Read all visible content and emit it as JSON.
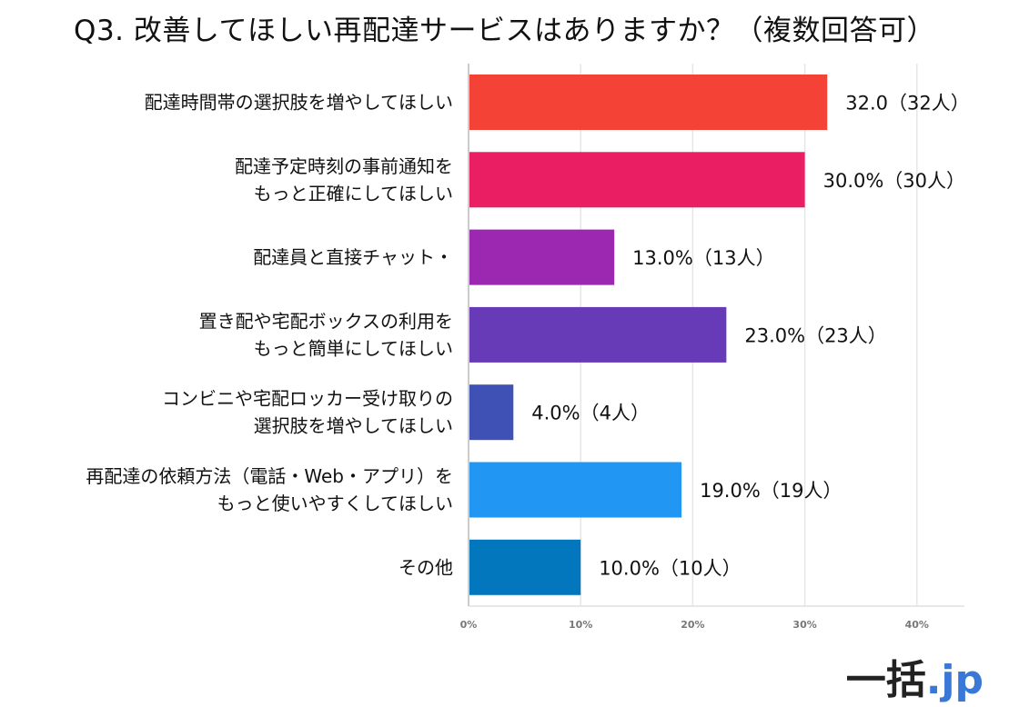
{
  "chart_data": {
    "type": "bar",
    "orientation": "horizontal",
    "title": "Q3. 改善してほしい再配達サービスはありますか？（複数回答可）",
    "xlabel": "",
    "ylabel": "",
    "xlim": [
      0,
      44
    ],
    "grid": true,
    "legend": "none",
    "categories": [
      [
        "配達時間帯の選択肢を増やしてほしい"
      ],
      [
        "配達予定時刻の事前通知を",
        "もっと正確にしてほしい"
      ],
      [
        "配達員と直接チャット・"
      ],
      [
        "置き配や宅配ボックスの利用を",
        "もっと簡単にしてほしい"
      ],
      [
        "コンビニや宅配ロッカー受け取りの",
        "選択肢を増やしてほしい"
      ],
      [
        "再配達の依頼方法（電話・Web・アプリ）を",
        "もっと使いやすくしてほしい"
      ],
      [
        "その他"
      ]
    ],
    "values": [
      32.0,
      30.0,
      13.0,
      23.0,
      4.0,
      19.0,
      10.0
    ],
    "counts": [
      32,
      30,
      13,
      23,
      4,
      19,
      10
    ],
    "data_labels": [
      "32.0（32人）",
      "30.0%（30人）",
      "13.0%（13人）",
      "23.0%（23人）",
      "4.0%（4人）",
      "19.0%（19人）",
      "10.0%（10人）"
    ],
    "colors": [
      "#f44336",
      "#e91e63",
      "#9c27b0",
      "#673ab7",
      "#3f51b5",
      "#2196f3",
      "#0277bd"
    ],
    "ticks": [
      0,
      10,
      20,
      30,
      40
    ],
    "tick_labels": [
      "0%",
      "10%",
      "20%",
      "30%",
      "40%"
    ]
  },
  "logo": {
    "part1": "一括",
    "part2": ".jp"
  }
}
